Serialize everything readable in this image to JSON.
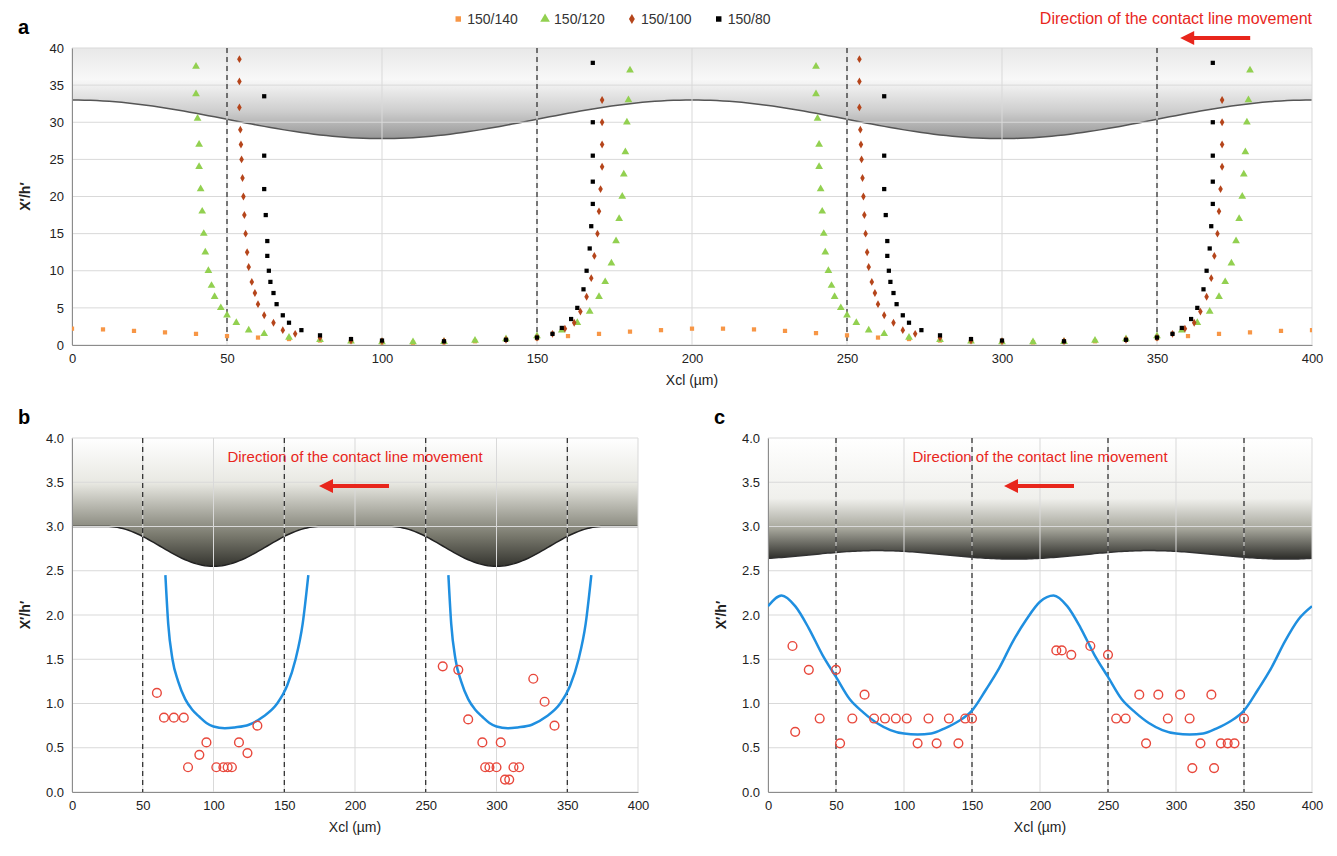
{
  "chart_data": [
    {
      "type": "scatter",
      "panel_label": "a",
      "x_label": "Xcl (µm)",
      "y_label": "X′/h′",
      "annotation": "Direction of the contact line movement",
      "xlim": [
        0,
        400
      ],
      "xticks": [
        0,
        50,
        100,
        150,
        200,
        250,
        300,
        350,
        400
      ],
      "ylim": [
        0,
        40
      ],
      "yticks": [
        0,
        5,
        10,
        15,
        20,
        25,
        30,
        35,
        40
      ],
      "grid": true,
      "legend": "top",
      "reference_lines": [
        50,
        150,
        250,
        350
      ],
      "series": [
        {
          "name": "150/140",
          "color": "#f79646",
          "marker": "square",
          "x": [
            0,
            10,
            20,
            30,
            40,
            50,
            60,
            70,
            80,
            90,
            100,
            110,
            120,
            130,
            140,
            150,
            160,
            170,
            180,
            190,
            200,
            210,
            220,
            230,
            240,
            250,
            260,
            270,
            280,
            290,
            300,
            310,
            320,
            330,
            340,
            350,
            360,
            370,
            380,
            390,
            400
          ],
          "values": [
            2.2,
            2.1,
            1.9,
            1.7,
            1.5,
            1.2,
            1.0,
            0.8,
            0.6,
            0.5,
            0.35,
            0.3,
            0.35,
            0.5,
            0.7,
            0.9,
            1.2,
            1.5,
            1.8,
            2.0,
            2.2,
            2.2,
            2.1,
            1.9,
            1.6,
            1.3,
            1.0,
            0.8,
            0.6,
            0.5,
            0.4,
            0.35,
            0.4,
            0.5,
            0.7,
            0.9,
            1.2,
            1.5,
            1.7,
            1.9,
            2.0
          ]
        },
        {
          "name": "150/120",
          "color": "#92d050",
          "marker": "triangle",
          "x": [
            40,
            40,
            40.5,
            41,
            41,
            41.5,
            42,
            42.5,
            43,
            44,
            45,
            46,
            48,
            50,
            53,
            57,
            62,
            70,
            80,
            90,
            100,
            110,
            120,
            130,
            140,
            150,
            158,
            163,
            167,
            170,
            172,
            174,
            175.5,
            176.5,
            177.5,
            178,
            178.5,
            179,
            179.5,
            180,
            240,
            240,
            240.5,
            241,
            241,
            241.5,
            242,
            242.5,
            243,
            244,
            245,
            246,
            248,
            250,
            253,
            257,
            262,
            270,
            280,
            290,
            300,
            310,
            320,
            330,
            340,
            350,
            358,
            363,
            367,
            370,
            372,
            374,
            375.5,
            376.5,
            377.5,
            378,
            378.5,
            379,
            379.5,
            380
          ],
          "values": [
            37.5,
            33.8,
            30.5,
            27,
            24,
            21,
            18,
            15,
            12.5,
            10,
            8,
            6.5,
            5,
            4,
            3,
            2,
            1.5,
            1,
            0.7,
            0.5,
            0.4,
            0.4,
            0.45,
            0.6,
            0.8,
            1.2,
            2,
            3,
            4.5,
            6.5,
            8.5,
            11,
            14,
            17,
            20,
            23,
            26,
            30,
            33,
            37,
            37.5,
            33.8,
            30.5,
            27,
            24,
            21,
            18,
            15,
            12.5,
            10,
            8,
            6.5,
            5,
            4,
            3,
            2,
            1.5,
            1,
            0.7,
            0.5,
            0.4,
            0.4,
            0.45,
            0.6,
            0.8,
            1.2,
            2,
            3,
            4.5,
            6.5,
            8.5,
            11,
            14,
            17,
            20,
            23,
            26,
            30,
            33,
            37
          ]
        },
        {
          "name": "150/100",
          "color": "#b5451b",
          "marker": "diamond",
          "x": [
            54,
            54,
            54,
            54.3,
            54.5,
            54.7,
            55,
            55.3,
            55.6,
            56,
            56.5,
            57,
            58,
            59,
            60,
            62,
            65,
            68,
            72,
            80,
            90,
            100,
            120,
            140,
            150,
            155,
            159,
            162,
            164,
            166,
            167.5,
            168.5,
            169.5,
            170,
            170.5,
            171,
            171,
            171,
            171,
            254,
            254,
            254,
            254.3,
            254.5,
            254.7,
            255,
            255.3,
            255.6,
            256,
            256.5,
            257,
            258,
            259,
            260,
            262,
            265,
            268,
            272,
            280,
            290,
            300,
            320,
            340,
            350,
            355,
            359,
            362,
            364,
            366,
            367.5,
            368.5,
            369.5,
            370,
            370.5,
            371,
            371,
            371,
            371
          ],
          "values": [
            38.5,
            35.5,
            32,
            29,
            27,
            25,
            22.5,
            20,
            17.5,
            15,
            12.5,
            10.5,
            8.5,
            7,
            5.5,
            4,
            3,
            2,
            1.5,
            1,
            0.6,
            0.5,
            0.5,
            0.7,
            1,
            1.5,
            2.2,
            3,
            4.5,
            6.5,
            9,
            12,
            15,
            18,
            21,
            24,
            27,
            30,
            33,
            38.5,
            35.5,
            32,
            29,
            27,
            25,
            22.5,
            20,
            17.5,
            15,
            12.5,
            10.5,
            8.5,
            7,
            5.5,
            4,
            3,
            2,
            1.5,
            1,
            0.6,
            0.5,
            0.5,
            0.7,
            1,
            1.5,
            2.2,
            3,
            4.5,
            6.5,
            9,
            12,
            15,
            18,
            21,
            24,
            27,
            30,
            33
          ]
        },
        {
          "name": "150/80",
          "color": "#000000",
          "marker": "square",
          "x": [
            62,
            62,
            62,
            62.5,
            63,
            63,
            63.5,
            64,
            65,
            66,
            68,
            70,
            74,
            80,
            90,
            100,
            120,
            140,
            150,
            155,
            158,
            161,
            163,
            165,
            166,
            167,
            167.5,
            168,
            168,
            168,
            168,
            168,
            262,
            262,
            262,
            262.5,
            263,
            263,
            263.5,
            264,
            265,
            266,
            268,
            270,
            274,
            280,
            290,
            300,
            320,
            340,
            350,
            355,
            358,
            361,
            363,
            365,
            366,
            367,
            367.5,
            368,
            368,
            368,
            368,
            368
          ],
          "values": [
            33.5,
            25.5,
            21,
            17.5,
            14,
            12,
            10,
            8.5,
            7,
            5.5,
            4,
            3,
            2,
            1.3,
            0.8,
            0.6,
            0.5,
            0.7,
            1,
            1.5,
            2.3,
            3.5,
            5,
            7.5,
            10,
            13,
            16,
            19,
            22,
            25.5,
            30,
            38,
            33.5,
            25.5,
            21,
            17.5,
            14,
            12,
            10,
            8.5,
            7,
            5.5,
            4,
            3,
            2,
            1.3,
            0.8,
            0.6,
            0.5,
            0.7,
            1,
            1.5,
            2.3,
            3.5,
            5,
            7.5,
            10,
            13,
            16,
            19,
            22,
            25.5,
            30,
            38
          ]
        }
      ]
    },
    {
      "type": "line",
      "panel_label": "b",
      "x_label": "Xcl (µm)",
      "y_label": "X′/h′",
      "annotation": "Direction of the contact line movement",
      "xlim": [
        0,
        400
      ],
      "xticks": [
        0,
        50,
        100,
        150,
        200,
        250,
        300,
        350,
        400
      ],
      "ylim": [
        0,
        4
      ],
      "yticks": [
        {
          "value": 0,
          "label": "0.0"
        },
        {
          "value": 0.5,
          "label": "0.5"
        },
        {
          "value": 1,
          "label": "1.0"
        },
        {
          "value": 1.5,
          "label": "1.5"
        },
        {
          "value": 2,
          "label": "2.0"
        },
        {
          "value": 2.5,
          "label": "2.5"
        },
        {
          "value": 3,
          "label": "3.0"
        },
        {
          "value": 3.5,
          "label": "3.5"
        },
        {
          "value": 4,
          "label": "4.0"
        }
      ],
      "grid": true,
      "reference_lines": [
        50,
        150,
        250,
        350
      ],
      "series": [
        {
          "type": "line",
          "color": "#1f8fe0",
          "line_style": "solid",
          "x": [
            66,
            68,
            71,
            75,
            80,
            85,
            90,
            95,
            100,
            108,
            115,
            125,
            135,
            145,
            152,
            158,
            163,
            167,
            200,
            266,
            268,
            271,
            275,
            280,
            285,
            290,
            295,
            300,
            308,
            315,
            325,
            335,
            345,
            352,
            358,
            363,
            367
          ],
          "values": [
            2.45,
            1.9,
            1.5,
            1.25,
            1.05,
            0.93,
            0.85,
            0.78,
            0.74,
            0.72,
            0.73,
            0.76,
            0.85,
            1.0,
            1.2,
            1.5,
            1.9,
            2.45,
            null,
            2.45,
            1.9,
            1.5,
            1.25,
            1.05,
            0.93,
            0.85,
            0.78,
            0.74,
            0.72,
            0.73,
            0.76,
            0.85,
            1.0,
            1.2,
            1.5,
            1.9,
            2.45
          ]
        },
        {
          "type": "scatter",
          "color": "#e8483c",
          "marker": "circle-open",
          "x": [
            60,
            65,
            72,
            79,
            82,
            90,
            95,
            102,
            107,
            110,
            113,
            118,
            124,
            131,
            262,
            273,
            280,
            290,
            292,
            295,
            300,
            303,
            306,
            309,
            312,
            316,
            326,
            334,
            341
          ],
          "values": [
            1.12,
            0.84,
            0.84,
            0.84,
            0.28,
            0.42,
            0.56,
            0.28,
            0.28,
            0.28,
            0.28,
            0.56,
            0.44,
            0.75,
            1.42,
            1.38,
            0.82,
            0.56,
            0.28,
            0.28,
            0.28,
            0.56,
            0.14,
            0.14,
            0.28,
            0.28,
            1.28,
            1.02,
            0.75
          ]
        }
      ]
    },
    {
      "type": "line",
      "panel_label": "c",
      "x_label": "Xcl (µm)",
      "y_label": "X′/h′",
      "annotation": "Direction of the contact line movement",
      "xlim": [
        0,
        400
      ],
      "xticks": [
        0,
        50,
        100,
        150,
        200,
        250,
        300,
        350,
        400
      ],
      "ylim": [
        0,
        4
      ],
      "yticks": [
        {
          "value": 0,
          "label": "0.0"
        },
        {
          "value": 0.5,
          "label": "0.5"
        },
        {
          "value": 1,
          "label": "1.0"
        },
        {
          "value": 1.5,
          "label": "1.5"
        },
        {
          "value": 2,
          "label": "2.0"
        },
        {
          "value": 2.5,
          "label": "2.5"
        },
        {
          "value": 3,
          "label": "3.0"
        },
        {
          "value": 3.5,
          "label": "3.5"
        },
        {
          "value": 4,
          "label": "4.0"
        }
      ],
      "grid": true,
      "reference_lines": [
        50,
        150,
        250,
        350
      ],
      "series": [
        {
          "type": "line",
          "color": "#1f8fe0",
          "line_style": "solid",
          "x": [
            0,
            10,
            20,
            30,
            40,
            50,
            60,
            70,
            80,
            90,
            100,
            110,
            120,
            130,
            140,
            150,
            160,
            170,
            180,
            190,
            200,
            210,
            220,
            230,
            240,
            250,
            260,
            270,
            280,
            290,
            300,
            310,
            320,
            330,
            340,
            350,
            360,
            370,
            380,
            390,
            400
          ],
          "values": [
            2.1,
            2.22,
            2.1,
            1.85,
            1.55,
            1.3,
            1.05,
            0.9,
            0.78,
            0.7,
            0.66,
            0.65,
            0.66,
            0.72,
            0.8,
            0.92,
            1.15,
            1.4,
            1.7,
            1.95,
            2.15,
            2.22,
            2.1,
            1.85,
            1.55,
            1.3,
            1.05,
            0.9,
            0.78,
            0.7,
            0.66,
            0.65,
            0.66,
            0.72,
            0.8,
            0.92,
            1.15,
            1.4,
            1.7,
            1.95,
            2.1
          ]
        },
        {
          "type": "scatter",
          "color": "#e8483c",
          "marker": "circle-open",
          "x": [
            18,
            20,
            30,
            38,
            50,
            53,
            62,
            71,
            78,
            86,
            94,
            102,
            110,
            118,
            124,
            133,
            140,
            145,
            150,
            212,
            216,
            223,
            237,
            250,
            256,
            263,
            273,
            278,
            287,
            294,
            303,
            310,
            312,
            318,
            326,
            328,
            333,
            338,
            343,
            350
          ],
          "values": [
            1.65,
            0.68,
            1.38,
            0.83,
            1.38,
            0.55,
            0.83,
            1.1,
            0.83,
            0.83,
            0.83,
            0.83,
            0.55,
            0.83,
            0.55,
            0.83,
            0.55,
            0.83,
            0.83,
            1.6,
            1.6,
            1.55,
            1.65,
            1.55,
            0.83,
            0.83,
            1.1,
            0.55,
            1.1,
            0.83,
            1.1,
            0.83,
            0.27,
            0.55,
            1.1,
            0.27,
            0.55,
            0.55,
            0.55,
            0.83
          ]
        }
      ]
    }
  ]
}
